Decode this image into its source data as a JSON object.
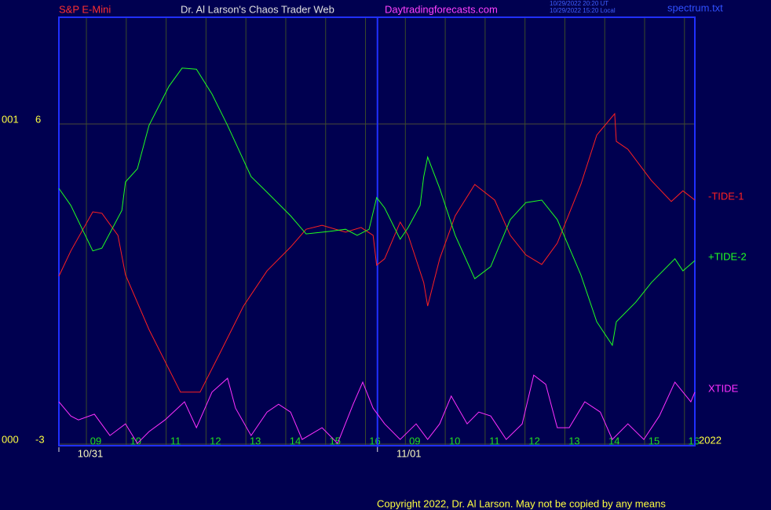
{
  "chart_data": {
    "type": "line",
    "title": "Dr. Al Larson's Chaos Trader Web",
    "instrument": "S&P E-Mini",
    "website": "Daytradingforecasts.com",
    "timestamps": [
      "10/29/2022 20:20 UT",
      "10/29/2022 15:20 Local"
    ],
    "file": "spectrum.txt",
    "copyright": "Copyright 2022, Dr. Al Larson. May not be copied by any means",
    "year": "2022",
    "axis_codes": [
      "001",
      "000"
    ],
    "xlim": [
      8.31,
      24.26
    ],
    "xticks": [
      {
        "value": 9,
        "label": "09"
      },
      10,
      11,
      12,
      13,
      14,
      15,
      16,
      {
        "value": 17,
        "label": "09"
      },
      {
        "value": 18,
        "label": "10"
      },
      {
        "value": 19,
        "label": "11"
      },
      {
        "value": 20,
        "label": "12"
      },
      {
        "value": 21,
        "label": "13"
      },
      {
        "value": 22,
        "label": "14"
      },
      {
        "value": 23,
        "label": "15"
      },
      {
        "value": 24,
        "label": "16"
      }
    ],
    "date_ticks": [
      {
        "value": 8.31,
        "label": "10/31"
      },
      {
        "value": 16.3,
        "label": "11/01"
      }
    ],
    "ylim": [
      -3,
      9
    ],
    "yticks": [
      6,
      -3
    ],
    "grid": true,
    "series": [
      {
        "name": "-TIDE-1",
        "color": "#ff2020",
        "x": [
          8.31,
          8.61,
          9.16,
          9.39,
          9.79,
          9.98,
          10.57,
          11.36,
          11.85,
          12.35,
          12.94,
          13.53,
          14.12,
          14.51,
          14.91,
          15.5,
          15.89,
          16.19,
          16.28,
          16.48,
          16.87,
          17.07,
          17.46,
          17.56,
          17.86,
          18.25,
          18.74,
          19.24,
          19.63,
          20.02,
          20.42,
          20.81,
          21.4,
          21.8,
          22.25,
          22.29,
          22.58,
          23.17,
          23.67,
          23.96,
          24.26
        ],
        "values": [
          1.72,
          2.43,
          3.53,
          3.49,
          2.87,
          1.76,
          0.22,
          -1.54,
          -1.54,
          -0.44,
          0.88,
          1.87,
          2.54,
          3.04,
          3.15,
          2.96,
          3.09,
          2.87,
          2.03,
          2.21,
          3.24,
          2.87,
          1.54,
          0.88,
          2.21,
          3.42,
          4.3,
          3.86,
          2.87,
          2.32,
          2.05,
          2.65,
          4.3,
          5.69,
          6.29,
          5.51,
          5.29,
          4.41,
          3.82,
          4.12,
          3.86
        ]
      },
      {
        "name": "+TIDE-2",
        "color": "#20ff20",
        "x": [
          8.31,
          8.61,
          9.16,
          9.39,
          9.89,
          9.98,
          10.28,
          10.57,
          11.07,
          11.4,
          11.76,
          12.15,
          12.54,
          13.13,
          13.53,
          14.12,
          14.51,
          15.1,
          15.5,
          15.79,
          16.09,
          16.28,
          16.48,
          16.87,
          17.07,
          17.37,
          17.46,
          17.56,
          17.86,
          18.25,
          18.74,
          19.14,
          19.63,
          20.02,
          20.42,
          20.81,
          21.4,
          21.8,
          22.19,
          22.29,
          22.78,
          23.17,
          23.76,
          23.96,
          24.26
        ],
        "values": [
          4.19,
          3.71,
          2.43,
          2.51,
          3.57,
          4.37,
          4.74,
          5.96,
          7.06,
          7.57,
          7.54,
          6.84,
          5.96,
          4.52,
          4.08,
          3.42,
          2.91,
          2.98,
          3.04,
          2.87,
          3.04,
          3.93,
          3.64,
          2.76,
          3.09,
          3.71,
          4.52,
          5.07,
          4.19,
          2.87,
          1.65,
          1.99,
          3.31,
          3.79,
          3.86,
          3.31,
          1.76,
          0.44,
          -0.22,
          0.44,
          0.99,
          1.54,
          2.21,
          1.87,
          2.16
        ]
      },
      {
        "name": "XTIDE",
        "color": "#ff30ff",
        "x": [
          8.31,
          8.61,
          8.8,
          9.2,
          9.59,
          9.98,
          10.28,
          10.57,
          10.97,
          11.46,
          11.76,
          12.15,
          12.54,
          12.74,
          13.13,
          13.53,
          13.82,
          14.12,
          14.41,
          14.91,
          15.3,
          15.69,
          15.93,
          16.19,
          16.48,
          16.87,
          17.27,
          17.56,
          17.86,
          18.15,
          18.55,
          18.84,
          19.14,
          19.53,
          19.93,
          20.22,
          20.52,
          20.81,
          21.11,
          21.5,
          21.89,
          22.19,
          22.58,
          22.98,
          23.37,
          23.76,
          24.16,
          24.26
        ],
        "values": [
          -1.81,
          -2.21,
          -2.32,
          -2.16,
          -2.76,
          -2.43,
          -2.98,
          -2.65,
          -2.32,
          -1.81,
          -2.54,
          -1.54,
          -1.15,
          -1.99,
          -2.76,
          -2.1,
          -1.88,
          -2.1,
          -2.87,
          -2.54,
          -2.98,
          -1.88,
          -1.26,
          -1.99,
          -2.43,
          -2.87,
          -2.43,
          -2.87,
          -2.43,
          -1.65,
          -2.43,
          -2.1,
          -2.21,
          -2.87,
          -2.43,
          -1.06,
          -1.32,
          -2.54,
          -2.54,
          -1.81,
          -2.1,
          -2.87,
          -2.43,
          -2.87,
          -2.21,
          -1.26,
          -1.81,
          -1.54
        ]
      }
    ]
  }
}
